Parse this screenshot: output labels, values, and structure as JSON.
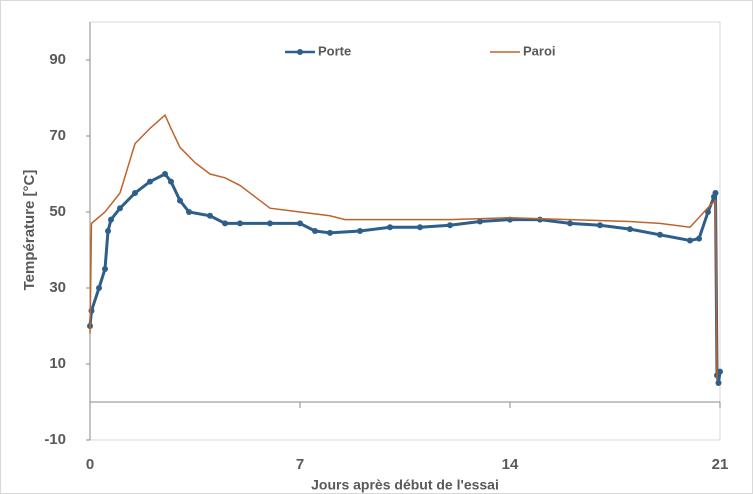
{
  "chart_data": {
    "type": "line",
    "y_label": "Température [°C]",
    "x_label": "Jours après début de l'essai",
    "xlim": [
      0,
      21
    ],
    "xticks": [
      0,
      7,
      14,
      21
    ],
    "ylim": [
      -10,
      100
    ],
    "yticks": [
      -10,
      10,
      30,
      50,
      70,
      90
    ],
    "legend": "top",
    "series": [
      {
        "name": "Porte",
        "color": "#2e5f8a",
        "marker": true,
        "x": [
          0,
          0.05,
          0.3,
          0.5,
          0.6,
          0.7,
          1,
          1.5,
          2,
          2.5,
          2.7,
          3,
          3.3,
          4,
          4.5,
          5,
          6,
          7,
          7.5,
          8,
          9,
          10,
          11,
          12,
          13,
          14,
          15,
          16,
          17,
          18,
          19,
          20,
          20.3,
          20.6,
          20.8,
          20.85,
          20.9,
          20.95,
          21
        ],
        "values": [
          20,
          24,
          30,
          35,
          45,
          48,
          51,
          55,
          58,
          60,
          58,
          53,
          50,
          49,
          47,
          47,
          47,
          47,
          45,
          44.5,
          45,
          46,
          46,
          46.5,
          47.5,
          48,
          48,
          47,
          46.5,
          45.5,
          44,
          42.5,
          43,
          50,
          54,
          55,
          7,
          5,
          8
        ]
      },
      {
        "name": "Paroi",
        "color": "#c0622a",
        "marker": false,
        "x": [
          0,
          0.05,
          0.5,
          1,
          1.5,
          2,
          2.5,
          2.7,
          3,
          3.5,
          4,
          4.5,
          5,
          5.5,
          6,
          7,
          8,
          8.5,
          10,
          12,
          14,
          16,
          18,
          19,
          20,
          20.7,
          20.85,
          20.9
        ],
        "values": [
          18,
          47,
          50,
          55,
          68,
          72,
          75.5,
          72,
          67,
          63,
          60,
          59,
          57,
          54,
          51,
          50,
          49,
          48,
          48,
          48,
          48.5,
          48,
          47.5,
          47,
          46,
          52,
          53,
          6
        ]
      }
    ]
  }
}
